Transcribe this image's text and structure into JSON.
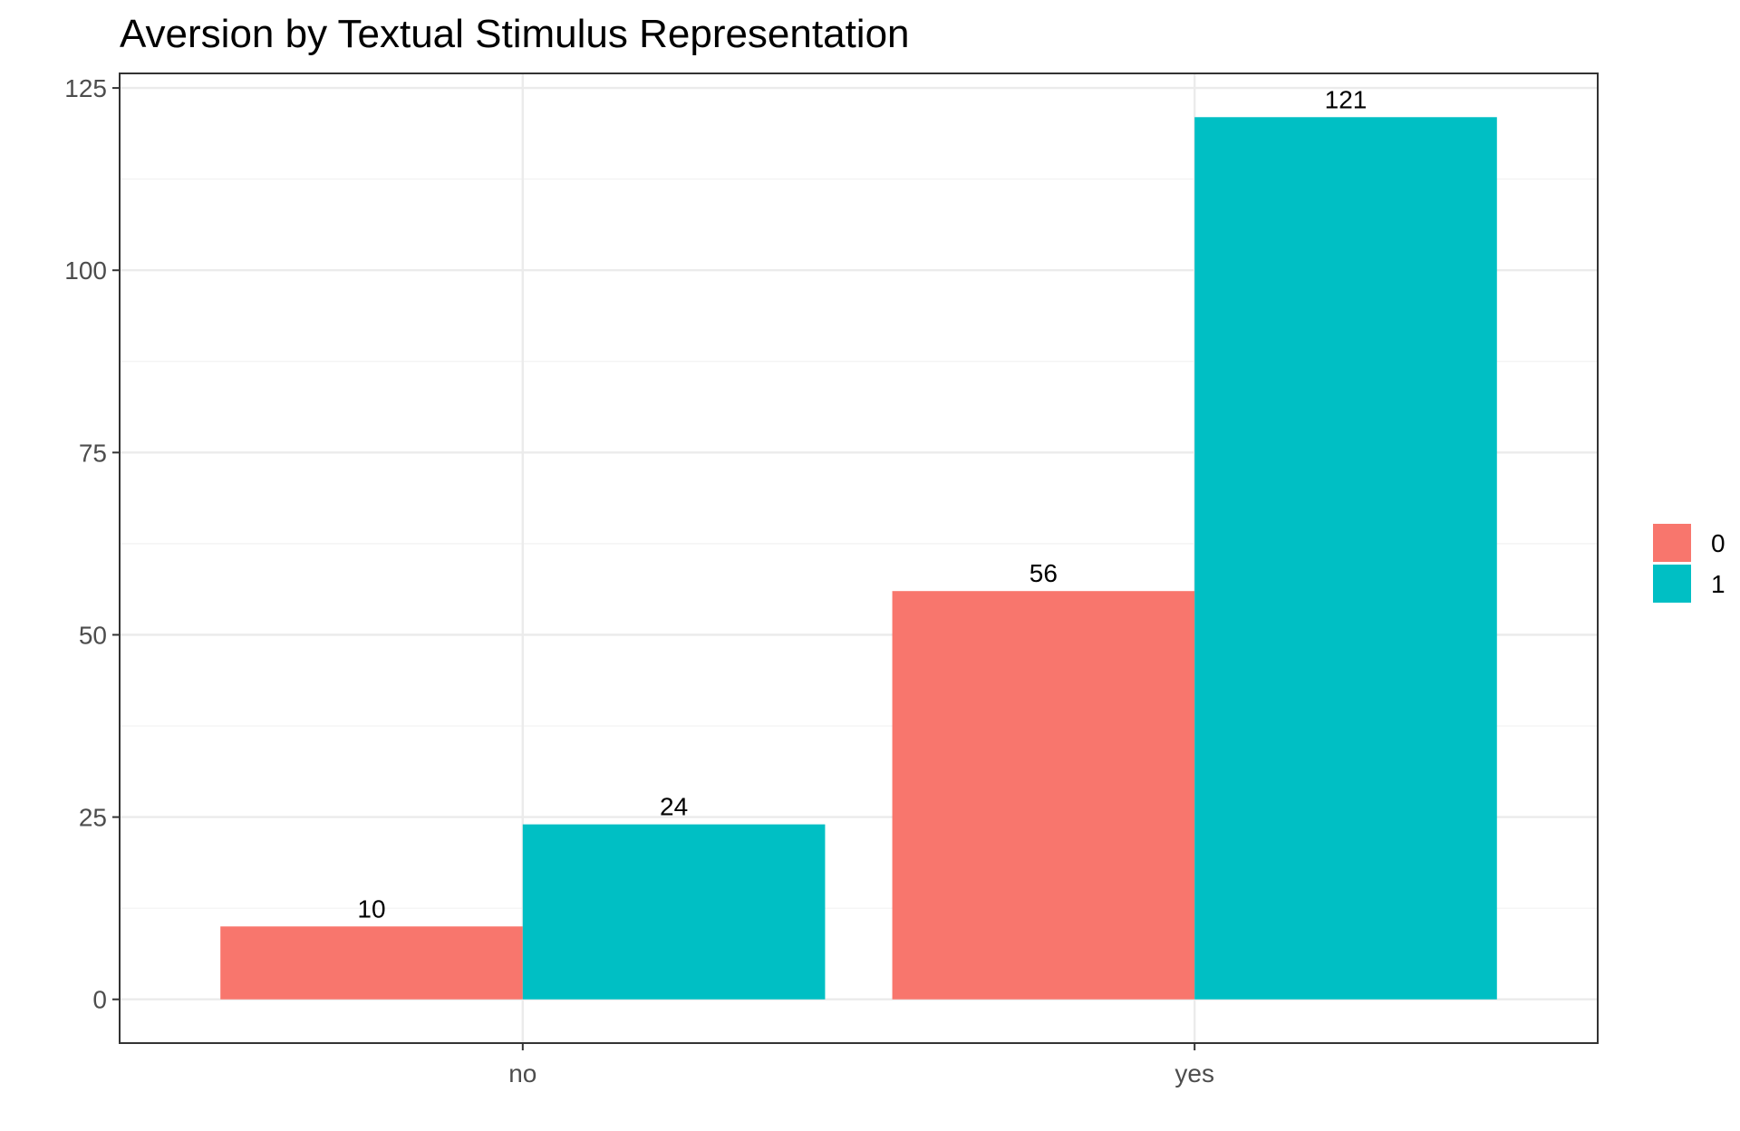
{
  "chart_data": {
    "type": "bar",
    "title": "Aversion by Textual Stimulus Representation",
    "xlabel": "",
    "ylabel": "",
    "categories": [
      "no",
      "yes"
    ],
    "series": [
      {
        "name": "0",
        "color": "#F8766D",
        "values": [
          10,
          56
        ]
      },
      {
        "name": "1",
        "color": "#00BFC4",
        "values": [
          24,
          121
        ]
      }
    ],
    "ylim": [
      -6,
      127
    ],
    "yticks": [
      0,
      25,
      50,
      75,
      100,
      125
    ],
    "grid": true,
    "legend_position": "right",
    "data_labels": true
  }
}
